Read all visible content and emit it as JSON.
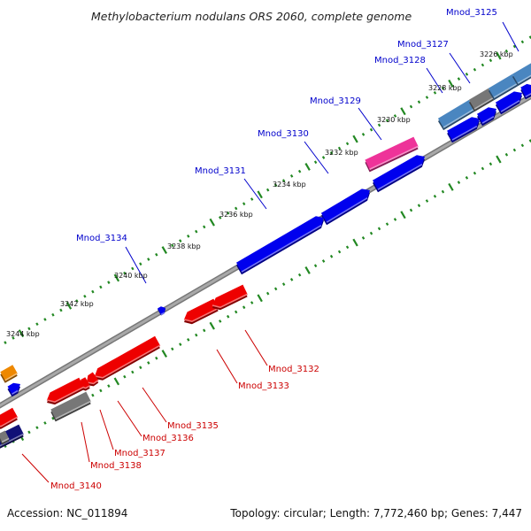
{
  "title": "Methylobacterium nodulans ORS 2060, complete genome",
  "footer": {
    "accession": "Accession: NC_011894",
    "summary": "Topology: circular; Length: 7,772,460 bp; Genes: 7,447"
  },
  "scale_labels": [
    "3226 kbp",
    "3228 kbp",
    "3230 kbp",
    "3232 kbp",
    "3234 kbp",
    "3236 kbp",
    "3238 kbp",
    "3240 kbp",
    "3242 kbp",
    "3244 kbp"
  ],
  "colors": {
    "forward_gene": "#0000ee",
    "reverse_gene": "#ee0000",
    "pseudo_gene": "#777777",
    "highlight_gene": "#ee3399",
    "light_blue_gene": "#4a86c0",
    "dark_blue_gene": "#111177",
    "orange_gene": "#ee8800",
    "backbone": "#999999",
    "tick": "#228822",
    "forward_label": "#0000cc",
    "reverse_label": "#cc0000"
  },
  "forward_labels": [
    "Mnod_3125",
    "Mnod_3127",
    "Mnod_3128",
    "Mnod_3129",
    "Mnod_3130",
    "Mnod_3131",
    "Mnod_3134"
  ],
  "reverse_labels": [
    "Mnod_3132",
    "Mnod_3133",
    "Mnod_3135",
    "Mnod_3136",
    "Mnod_3137",
    "Mnod_3138",
    "Mnod_3140"
  ]
}
